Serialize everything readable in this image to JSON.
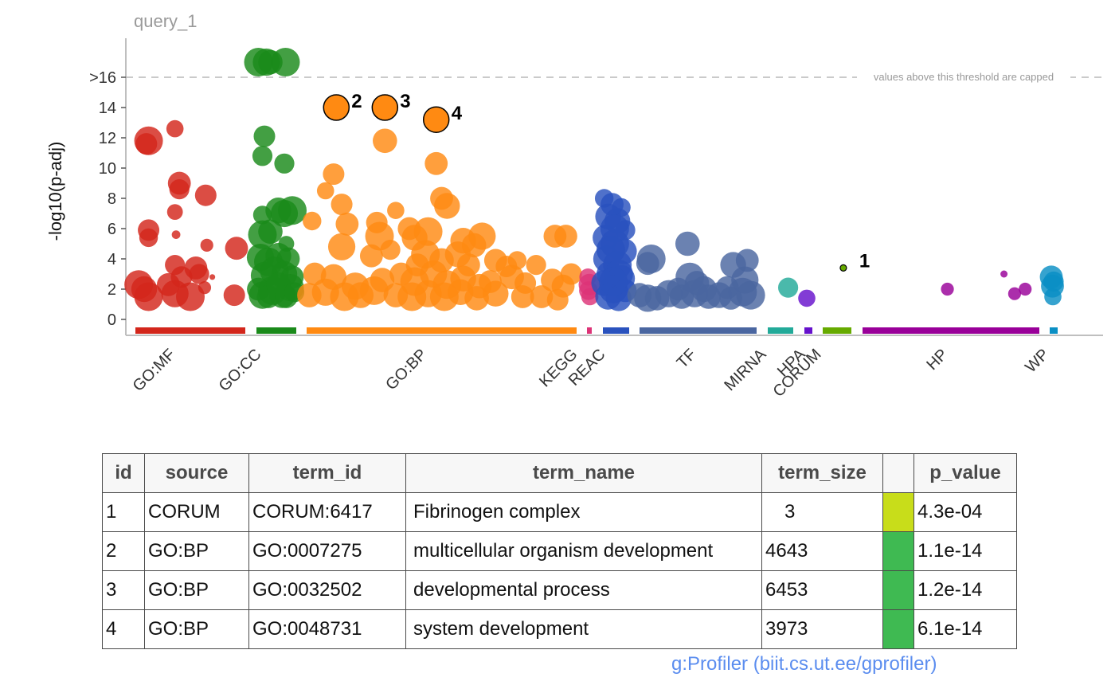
{
  "chart_data": {
    "type": "scatter",
    "title": "query_1",
    "ylabel": "-log10(p-adj)",
    "ylim": [
      -0.8,
      18.2
    ],
    "yticks": [
      {
        "value": 0,
        "label": "0"
      },
      {
        "value": 2,
        "label": "2"
      },
      {
        "value": 4,
        "label": "4"
      },
      {
        "value": 6,
        "label": "6"
      },
      {
        "value": 8,
        "label": "8"
      },
      {
        "value": 10,
        "label": "10"
      },
      {
        "value": 12,
        "label": "12"
      },
      {
        "value": 14,
        "label": "14"
      },
      {
        "value": 16,
        "label": ">16"
      }
    ],
    "threshold": {
      "value": 16,
      "label": "values above this threshold are capped"
    },
    "grid": false,
    "sources": [
      {
        "name": "GO:MF",
        "color": "#d3261b"
      },
      {
        "name": "GO:CC",
        "color": "#1a8a1a"
      },
      {
        "name": "GO:BP",
        "color": "#ff8a12"
      },
      {
        "name": "KEGG",
        "color": "#dd3377"
      },
      {
        "name": "REAC",
        "color": "#2a52be"
      },
      {
        "name": "TF",
        "color": "#4a66a0"
      },
      {
        "name": "MIRNA",
        "color": "#22aa99"
      },
      {
        "name": "HPA",
        "color": "#6611cc"
      },
      {
        "name": "CORUM",
        "color": "#66aa00"
      },
      {
        "name": "HP",
        "color": "#990099"
      },
      {
        "name": "WP",
        "color": "#0a8fc4"
      }
    ],
    "series": [
      {
        "name": "GO:MF",
        "points": [
          [
            0.03,
            2.3,
            2
          ],
          [
            0.12,
            11.8,
            2
          ],
          [
            0.1,
            11.6,
            1.5
          ],
          [
            0.36,
            12.6,
            1.2
          ],
          [
            0.4,
            9.0,
            1.6
          ],
          [
            0.4,
            8.6,
            1.4
          ],
          [
            0.36,
            7.1,
            1.1
          ],
          [
            0.64,
            8.2,
            1.5
          ],
          [
            0.12,
            5.9,
            1.5
          ],
          [
            0.12,
            5.4,
            1.3
          ],
          [
            0.37,
            5.6,
            0.6
          ],
          [
            0.65,
            4.9,
            0.9
          ],
          [
            0.36,
            3.6,
            1.4
          ],
          [
            0.55,
            3.4,
            1.6
          ],
          [
            0.58,
            3.0,
            1.4
          ],
          [
            0.42,
            2.8,
            1.5
          ],
          [
            0.08,
            2.0,
            1.8
          ],
          [
            0.12,
            1.5,
            2
          ],
          [
            0.3,
            2.3,
            1.6
          ],
          [
            0.36,
            1.7,
            1.9
          ],
          [
            0.5,
            1.5,
            2
          ],
          [
            0.63,
            2.1,
            0.9
          ],
          [
            0.7,
            2.8,
            0.4
          ],
          [
            0.9,
            1.6,
            1.5
          ],
          [
            0.92,
            4.7,
            1.6
          ]
        ]
      },
      {
        "name": "GO:CC",
        "points": [
          [
            0.05,
            17.0,
            2
          ],
          [
            0.35,
            17.0,
            1.7
          ],
          [
            0.25,
            17.0,
            1.9
          ],
          [
            0.73,
            17.0,
            2
          ],
          [
            0.2,
            12.1,
            1.5
          ],
          [
            0.15,
            10.8,
            1.4
          ],
          [
            0.7,
            10.3,
            1.4
          ],
          [
            0.15,
            6.9,
            1.3
          ],
          [
            0.55,
            7.2,
            1.8
          ],
          [
            0.7,
            7.0,
            1.9
          ],
          [
            0.9,
            7.2,
            2
          ],
          [
            0.15,
            5.6,
            2
          ],
          [
            0.35,
            5.8,
            1.7
          ],
          [
            0.75,
            5.0,
            1.1
          ],
          [
            0.1,
            4.1,
            1.9
          ],
          [
            0.3,
            3.8,
            2
          ],
          [
            0.55,
            4.2,
            1.8
          ],
          [
            0.8,
            4.0,
            1.6
          ],
          [
            0.2,
            2.9,
            1.9
          ],
          [
            0.45,
            3.2,
            2
          ],
          [
            0.7,
            3.0,
            1.8
          ],
          [
            0.9,
            2.8,
            1.6
          ],
          [
            0.05,
            2.0,
            1.6
          ],
          [
            0.15,
            1.6,
            1.9
          ],
          [
            0.4,
            1.9,
            2
          ],
          [
            0.65,
            1.6,
            1.8
          ],
          [
            0.85,
            2.1,
            1.9
          ],
          [
            0.3,
            1.5,
            1.6
          ],
          [
            0.55,
            2.3,
            1.7
          ],
          [
            0.75,
            1.5,
            1.6
          ],
          [
            0.95,
            1.8,
            1.4
          ]
        ]
      },
      {
        "name": "GO:BP",
        "points": [
          [
            0.11,
            14.0,
            1.7
          ],
          [
            0.29,
            14.0,
            1.7
          ],
          [
            0.48,
            13.2,
            1.7
          ],
          [
            0.29,
            11.8,
            1.7
          ],
          [
            0.1,
            9.6,
            1.5
          ],
          [
            0.48,
            10.3,
            1.6
          ],
          [
            0.07,
            8.5,
            1.2
          ],
          [
            0.13,
            7.6,
            1.5
          ],
          [
            0.33,
            7.2,
            1.2
          ],
          [
            0.5,
            8.0,
            1.6
          ],
          [
            0.52,
            7.5,
            1.8
          ],
          [
            0.92,
            5.5,
            1.6
          ],
          [
            0.02,
            6.5,
            1.3
          ],
          [
            0.15,
            6.3,
            1.6
          ],
          [
            0.26,
            6.4,
            1.5
          ],
          [
            0.27,
            5.5,
            2
          ],
          [
            0.38,
            6.0,
            1.6
          ],
          [
            0.4,
            5.4,
            1.8
          ],
          [
            0.45,
            5.8,
            2
          ],
          [
            0.58,
            5.2,
            1.8
          ],
          [
            0.62,
            4.9,
            1.7
          ],
          [
            0.65,
            5.5,
            1.9
          ],
          [
            0.13,
            4.8,
            1.9
          ],
          [
            0.24,
            4.2,
            1.6
          ],
          [
            0.31,
            4.6,
            1.4
          ],
          [
            0.41,
            3.6,
            1.6
          ],
          [
            0.44,
            4.3,
            2
          ],
          [
            0.5,
            3.9,
            1.7
          ],
          [
            0.56,
            4.3,
            1.8
          ],
          [
            0.6,
            3.6,
            1.6
          ],
          [
            0.7,
            3.9,
            1.6
          ],
          [
            0.74,
            3.5,
            1.5
          ],
          [
            0.78,
            3.9,
            1.3
          ],
          [
            0.85,
            3.6,
            1.4
          ],
          [
            0.03,
            3.0,
            1.6
          ],
          [
            0.1,
            2.8,
            1.8
          ],
          [
            0.18,
            2.2,
            1.9
          ],
          [
            0.28,
            2.6,
            1.7
          ],
          [
            0.35,
            3.0,
            1.6
          ],
          [
            0.4,
            2.5,
            2
          ],
          [
            0.47,
            3.0,
            1.9
          ],
          [
            0.52,
            2.3,
            2
          ],
          [
            0.58,
            2.7,
            1.8
          ],
          [
            0.64,
            2.2,
            1.7
          ],
          [
            0.68,
            2.5,
            1.6
          ],
          [
            0.76,
            2.8,
            1.7
          ],
          [
            0.81,
            2.4,
            1.5
          ],
          [
            0.91,
            2.6,
            1.6
          ],
          [
            0.95,
            2.2,
            1.6
          ],
          [
            0.01,
            1.6,
            1.7
          ],
          [
            0.07,
            1.8,
            1.9
          ],
          [
            0.14,
            1.5,
            2
          ],
          [
            0.2,
            1.6,
            1.8
          ],
          [
            0.25,
            1.9,
            2
          ],
          [
            0.33,
            1.6,
            1.7
          ],
          [
            0.39,
            1.5,
            2
          ],
          [
            0.45,
            1.7,
            1.9
          ],
          [
            0.51,
            1.5,
            2
          ],
          [
            0.57,
            1.8,
            1.8
          ],
          [
            0.63,
            1.4,
            1.7
          ],
          [
            0.7,
            1.7,
            1.8
          ],
          [
            0.8,
            1.5,
            1.6
          ],
          [
            0.87,
            1.5,
            1.6
          ],
          [
            0.93,
            1.3,
            1.5
          ],
          [
            0.98,
            3.0,
            1.5
          ],
          [
            0.96,
            5.5,
            1.6
          ]
        ]
      },
      {
        "name": "KEGG",
        "points": [
          [
            0.2,
            2.8,
            1.2
          ],
          [
            0.5,
            2.3,
            1.5
          ],
          [
            0.3,
            1.9,
            1.3
          ],
          [
            0.6,
            1.5,
            1.2
          ]
        ]
      },
      {
        "name": "REAC",
        "points": [
          [
            0.05,
            8.0,
            1.3
          ],
          [
            0.7,
            7.4,
            1.3
          ],
          [
            0.2,
            6.8,
            1.8
          ],
          [
            0.55,
            6.5,
            1.8
          ],
          [
            0.85,
            5.9,
            1.4
          ],
          [
            0.1,
            5.4,
            1.8
          ],
          [
            0.45,
            5.0,
            2
          ],
          [
            0.8,
            4.5,
            1.8
          ],
          [
            0.15,
            4.0,
            1.9
          ],
          [
            0.55,
            3.6,
            2
          ],
          [
            0.25,
            3.0,
            1.8
          ],
          [
            0.7,
            2.7,
            1.9
          ],
          [
            0.05,
            2.4,
            1.8
          ],
          [
            0.4,
            2.0,
            2
          ],
          [
            0.85,
            1.9,
            1.6
          ],
          [
            0.2,
            1.5,
            1.8
          ],
          [
            0.6,
            1.4,
            1.8
          ],
          [
            0.35,
            7.6,
            1.6
          ],
          [
            0.45,
            6.0,
            2
          ],
          [
            0.3,
            4.6,
            2
          ],
          [
            0.6,
            3.0,
            2
          ],
          [
            0.4,
            2.5,
            2
          ]
        ]
      },
      {
        "name": "TF",
        "points": [
          [
            0.1,
            4.0,
            2
          ],
          [
            0.07,
            3.7,
            1.6
          ],
          [
            0.41,
            5.0,
            1.7
          ],
          [
            0.8,
            3.6,
            1.8
          ],
          [
            0.92,
            3.9,
            1.6
          ],
          [
            0.43,
            2.8,
            2
          ],
          [
            0.49,
            2.4,
            1.7
          ],
          [
            0.9,
            2.6,
            1.9
          ],
          [
            0.33,
            2.0,
            1.6
          ],
          [
            0.55,
            2.0,
            1.8
          ],
          [
            0.75,
            2.1,
            1.6
          ],
          [
            0.88,
            1.8,
            2
          ],
          [
            0.0,
            1.6,
            1.7
          ],
          [
            0.07,
            1.4,
            1.9
          ],
          [
            0.15,
            1.4,
            1.7
          ],
          [
            0.25,
            1.7,
            1.9
          ],
          [
            0.36,
            1.5,
            1.7
          ],
          [
            0.47,
            1.7,
            1.9
          ],
          [
            0.59,
            1.5,
            1.7
          ],
          [
            0.68,
            1.6,
            1.8
          ],
          [
            0.78,
            1.4,
            1.6
          ],
          [
            0.95,
            1.6,
            2
          ]
        ]
      },
      {
        "name": "MIRNA",
        "points": [
          [
            0.8,
            2.1,
            1.4
          ]
        ]
      },
      {
        "name": "HPA",
        "points": [
          [
            0.3,
            1.4,
            1.2
          ]
        ]
      },
      {
        "name": "CORUM",
        "points": [
          [
            0.72,
            3.4,
            0.45
          ]
        ]
      },
      {
        "name": "HP",
        "points": [
          [
            0.48,
            2.0,
            0.9
          ],
          [
            0.8,
            3.0,
            0.5
          ],
          [
            0.86,
            1.7,
            0.9
          ],
          [
            0.92,
            2.0,
            0.9
          ]
        ]
      },
      {
        "name": "WP",
        "points": [
          [
            0.2,
            2.8,
            1.6
          ],
          [
            0.35,
            2.2,
            1.6
          ],
          [
            0.4,
            1.5,
            1.2
          ],
          [
            0.5,
            2.5,
            1.4
          ]
        ]
      }
    ],
    "highlighted": [
      {
        "label": "2",
        "source": "GO:BP",
        "y": 14.0,
        "pos": 0.11
      },
      {
        "label": "3",
        "source": "GO:BP",
        "y": 14.0,
        "pos": 0.29
      },
      {
        "label": "4",
        "source": "GO:BP",
        "y": 13.2,
        "pos": 0.48
      },
      {
        "label": "1",
        "source": "CORUM",
        "y": 3.4,
        "pos": 0.72
      }
    ]
  },
  "table": {
    "headers": {
      "id": "id",
      "source": "source",
      "term_id": "term_id",
      "term_name": "term_name",
      "term_size": "term_size",
      "p_value": "p_value"
    },
    "rows": [
      {
        "id": "1",
        "source": "CORUM",
        "term_id": "CORUM:6417",
        "term_name": "Fibrinogen complex",
        "term_size": "3",
        "p_value": "4.3e-04",
        "color": "#c8dd1a"
      },
      {
        "id": "2",
        "source": "GO:BP",
        "term_id": "GO:0007275",
        "term_name": "multicellular organism development",
        "term_size": "4643",
        "p_value": "1.1e-14",
        "color": "#3fba52"
      },
      {
        "id": "3",
        "source": "GO:BP",
        "term_id": "GO:0032502",
        "term_name": "developmental process",
        "term_size": "6453",
        "p_value": "1.2e-14",
        "color": "#3fba52"
      },
      {
        "id": "4",
        "source": "GO:BP",
        "term_id": "GO:0048731",
        "term_name": "system development",
        "term_size": "3973",
        "p_value": "6.1e-14",
        "color": "#3fba52"
      }
    ]
  },
  "footer": {
    "credit": "g:Profiler (biit.cs.ut.ee/gprofiler)"
  }
}
